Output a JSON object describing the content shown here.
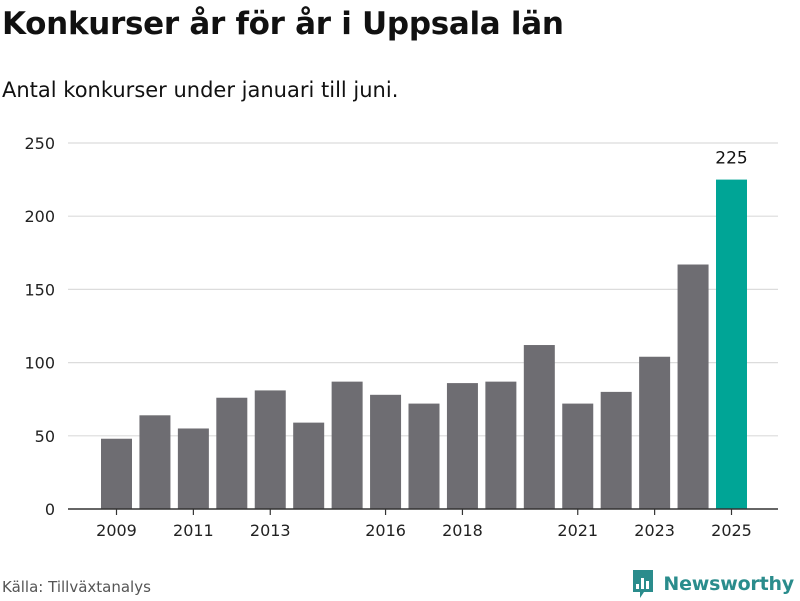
{
  "title": "Konkurser år för år i Uppsala län",
  "subtitle": "Antal konkurser under januari till juni.",
  "source": "Källa: Tillväxtanalys",
  "brand": {
    "name": "Newsworthy",
    "icon": "newsworthy-logo-icon"
  },
  "colors": {
    "bar": "#6e6d72",
    "highlight": "#00a596",
    "grid": "#dcdcdc",
    "axis": "#333333"
  },
  "chart_data": {
    "type": "bar",
    "categories": [
      "2009",
      "2010",
      "2011",
      "2012",
      "2013",
      "2014",
      "2015",
      "2016",
      "2017",
      "2018",
      "2019",
      "2020",
      "2021",
      "2022",
      "2023",
      "2024",
      "2025"
    ],
    "values": [
      48,
      64,
      55,
      76,
      81,
      59,
      87,
      78,
      72,
      86,
      87,
      112,
      72,
      80,
      104,
      167,
      225
    ],
    "x_tick_labels": [
      "2009",
      "2011",
      "2013",
      "2016",
      "2018",
      "2021",
      "2023",
      "2025"
    ],
    "y_ticks": [
      0,
      50,
      100,
      150,
      200,
      250
    ],
    "ylim": [
      0,
      250
    ],
    "highlight_category": "2025",
    "data_labels": [
      {
        "category": "2025",
        "text": "225"
      }
    ],
    "grid": true,
    "legend": "none",
    "xlabel": "",
    "ylabel": ""
  }
}
